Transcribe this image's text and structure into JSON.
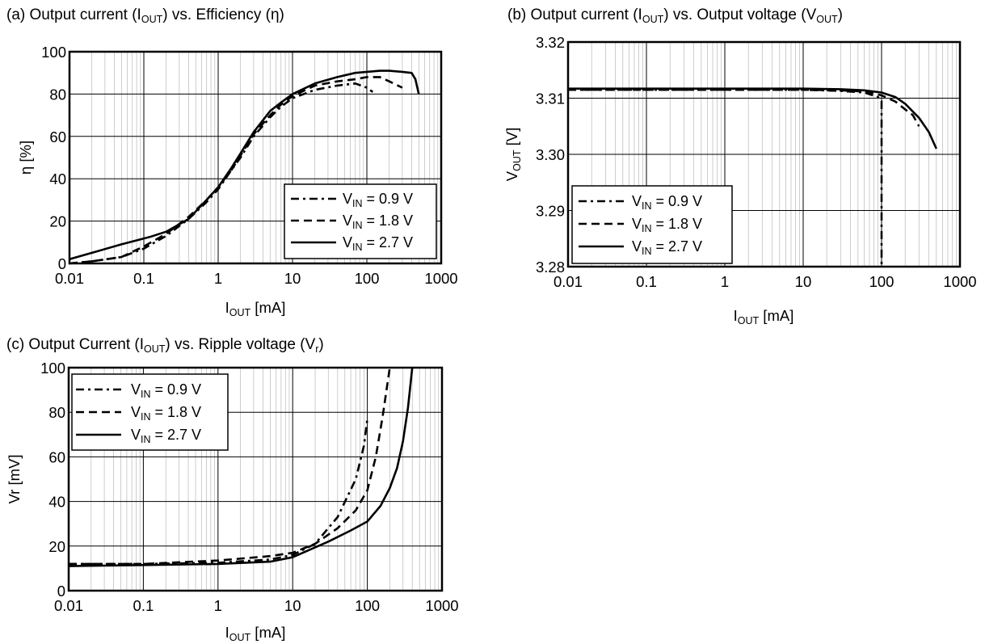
{
  "chart_data": [
    {
      "id": "a",
      "type": "line",
      "title": "(a) Output current (IOUT) vs. Efficiency (η)",
      "xlabel": "IOUT [mA]",
      "ylabel": "η [%]",
      "x_scale": "log",
      "xlim": [
        0.01,
        1000
      ],
      "ylim": [
        0,
        100
      ],
      "x_ticks": [
        "0.01",
        "0.1",
        "1",
        "10",
        "100",
        "1000"
      ],
      "y_ticks": [
        "0",
        "20",
        "40",
        "60",
        "80",
        "100"
      ],
      "grid": true,
      "legend_position": "lower-right",
      "series": [
        {
          "name": "VIN = 0.9 V",
          "style": "dashdot",
          "points": [
            [
              0.01,
              0
            ],
            [
              0.02,
              1
            ],
            [
              0.05,
              3
            ],
            [
              0.1,
              7
            ],
            [
              0.2,
              13
            ],
            [
              0.4,
              21
            ],
            [
              0.7,
              29
            ],
            [
              1,
              35
            ],
            [
              1.5,
              44
            ],
            [
              2,
              50
            ],
            [
              3,
              60
            ],
            [
              5,
              69
            ],
            [
              7,
              74
            ],
            [
              10,
              78
            ],
            [
              20,
              82
            ],
            [
              40,
              84
            ],
            [
              70,
              85
            ],
            [
              100,
              83
            ],
            [
              120,
              81
            ]
          ]
        },
        {
          "name": "VIN = 1.8 V",
          "style": "dashed",
          "points": [
            [
              0.01,
              0
            ],
            [
              0.02,
              1
            ],
            [
              0.05,
              3
            ],
            [
              0.1,
              8
            ],
            [
              0.2,
              14
            ],
            [
              0.4,
              22
            ],
            [
              0.7,
              30
            ],
            [
              1,
              36
            ],
            [
              1.5,
              44
            ],
            [
              2,
              51
            ],
            [
              3,
              61
            ],
            [
              5,
              70
            ],
            [
              7,
              75
            ],
            [
              10,
              79
            ],
            [
              20,
              84
            ],
            [
              40,
              86
            ],
            [
              70,
              87
            ],
            [
              100,
              88
            ],
            [
              150,
              88
            ],
            [
              200,
              86
            ],
            [
              300,
              83
            ]
          ]
        },
        {
          "name": "VIN = 2.7 V",
          "style": "solid",
          "points": [
            [
              0.01,
              2
            ],
            [
              0.02,
              5
            ],
            [
              0.05,
              9
            ],
            [
              0.12,
              12.5
            ],
            [
              0.2,
              15
            ],
            [
              0.4,
              21
            ],
            [
              0.7,
              30
            ],
            [
              1,
              36
            ],
            [
              1.5,
              45
            ],
            [
              2,
              52
            ],
            [
              3,
              62
            ],
            [
              5,
              72
            ],
            [
              7,
              76
            ],
            [
              10,
              80
            ],
            [
              20,
              85
            ],
            [
              40,
              88
            ],
            [
              70,
              90
            ],
            [
              100,
              90.5
            ],
            [
              150,
              91
            ],
            [
              200,
              91
            ],
            [
              300,
              90.5
            ],
            [
              400,
              90
            ],
            [
              450,
              87
            ],
            [
              500,
              80
            ]
          ]
        }
      ]
    },
    {
      "id": "b",
      "type": "line",
      "title": "(b) Output current (IOUT) vs. Output voltage (VOUT)",
      "xlabel": "IOUT [mA]",
      "ylabel": "VOUT [V]",
      "x_scale": "log",
      "xlim": [
        0.01,
        1000
      ],
      "ylim": [
        3.28,
        3.32
      ],
      "x_ticks": [
        "0.01",
        "0.1",
        "1",
        "10",
        "100",
        "1000"
      ],
      "y_ticks": [
        "3.28",
        "3.29",
        "3.30",
        "3.31",
        "3.32"
      ],
      "grid": true,
      "legend_position": "lower-left",
      "series": [
        {
          "name": "VIN = 0.9 V",
          "style": "dashdot",
          "points": [
            [
              0.01,
              3.3115
            ],
            [
              1,
              3.3115
            ],
            [
              10,
              3.3115
            ],
            [
              30,
              3.3113
            ],
            [
              60,
              3.311
            ],
            [
              90,
              3.3102
            ],
            [
              100,
              3.3095
            ],
            [
              100,
              3.28
            ]
          ]
        },
        {
          "name": "VIN = 1.8 V",
          "style": "dashed",
          "points": [
            [
              0.01,
              3.3115
            ],
            [
              1,
              3.3115
            ],
            [
              10,
              3.3115
            ],
            [
              30,
              3.3114
            ],
            [
              60,
              3.3112
            ],
            [
              100,
              3.3105
            ],
            [
              150,
              3.3094
            ],
            [
              200,
              3.308
            ],
            [
              250,
              3.307
            ],
            [
              300,
              3.305
            ]
          ]
        },
        {
          "name": "VIN = 2.7 V",
          "style": "solid",
          "points": [
            [
              0.01,
              3.3117
            ],
            [
              1,
              3.3117
            ],
            [
              10,
              3.3117
            ],
            [
              30,
              3.3116
            ],
            [
              60,
              3.3114
            ],
            [
              100,
              3.311
            ],
            [
              150,
              3.3102
            ],
            [
              200,
              3.309
            ],
            [
              300,
              3.3065
            ],
            [
              400,
              3.304
            ],
            [
              500,
              3.301
            ]
          ]
        }
      ]
    },
    {
      "id": "c",
      "type": "line",
      "title": "(c) Output Current (IOUT) vs. Ripple voltage (Vr)",
      "xlabel": "IOUT [mA]",
      "ylabel": "Vr [mV]",
      "x_scale": "log",
      "xlim": [
        0.01,
        1000
      ],
      "ylim": [
        0,
        100
      ],
      "x_ticks": [
        "0.01",
        "0.1",
        "1",
        "10",
        "100",
        "1000"
      ],
      "y_ticks": [
        "0",
        "20",
        "40",
        "60",
        "80",
        "100"
      ],
      "grid": true,
      "legend_position": "upper-left",
      "series": [
        {
          "name": "VIN = 0.9 V",
          "style": "dashdot",
          "points": [
            [
              0.01,
              12
            ],
            [
              0.1,
              12
            ],
            [
              1,
              12.5
            ],
            [
              5,
              14
            ],
            [
              10,
              16
            ],
            [
              20,
              21
            ],
            [
              40,
              33
            ],
            [
              70,
              50
            ],
            [
              90,
              65
            ],
            [
              100,
              77
            ]
          ]
        },
        {
          "name": "VIN = 1.8 V",
          "style": "dashed",
          "points": [
            [
              0.01,
              12
            ],
            [
              0.1,
              12
            ],
            [
              1,
              13.5
            ],
            [
              5,
              15.5
            ],
            [
              10,
              17
            ],
            [
              20,
              21
            ],
            [
              40,
              28
            ],
            [
              70,
              36
            ],
            [
              100,
              45
            ],
            [
              130,
              60
            ],
            [
              160,
              78
            ],
            [
              200,
              100
            ]
          ]
        },
        {
          "name": "VIN = 2.7 V",
          "style": "solid",
          "points": [
            [
              0.01,
              11
            ],
            [
              0.1,
              11.5
            ],
            [
              1,
              12
            ],
            [
              5,
              13
            ],
            [
              10,
              15
            ],
            [
              30,
              22
            ],
            [
              60,
              27
            ],
            [
              100,
              31
            ],
            [
              150,
              38
            ],
            [
              200,
              46
            ],
            [
              250,
              55
            ],
            [
              300,
              67
            ],
            [
              350,
              82
            ],
            [
              400,
              100
            ]
          ]
        }
      ]
    }
  ]
}
